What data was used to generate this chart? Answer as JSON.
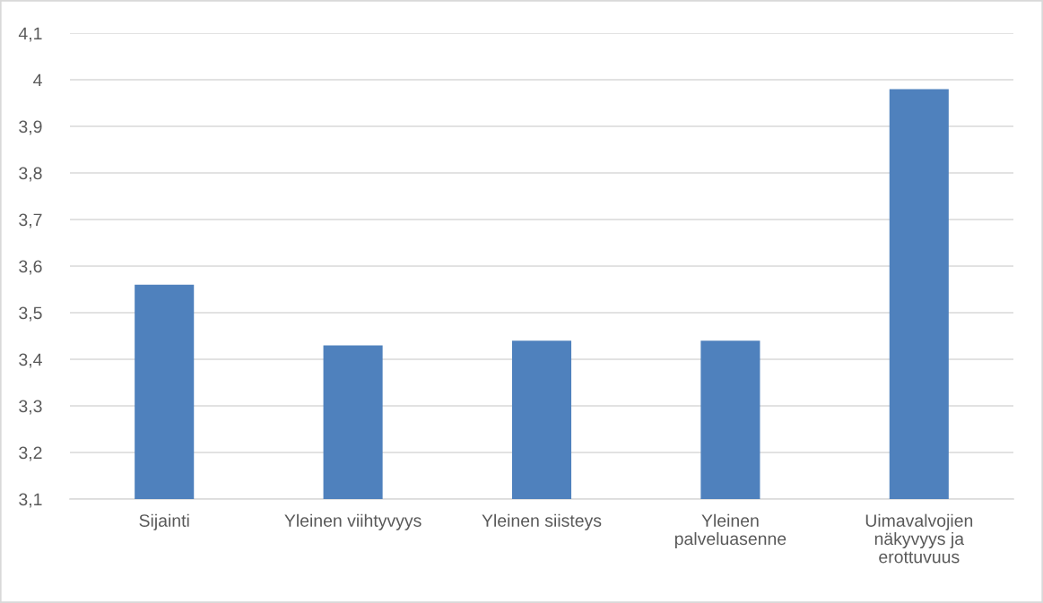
{
  "chart_data": {
    "type": "bar",
    "categories": [
      "Sijainti",
      "Yleinen viihtyvyys",
      "Yleinen siisteys",
      "Yleinen palveluasenne",
      "Uimavalvojien näkyvyys ja erottuvuus"
    ],
    "values": [
      3.56,
      3.43,
      3.44,
      3.44,
      3.98
    ],
    "color": "#4f81bd",
    "ylim": [
      3.1,
      4.1
    ],
    "yticks": [
      {
        "value": 3.1,
        "label": "3,1"
      },
      {
        "value": 3.2,
        "label": "3,2"
      },
      {
        "value": 3.3,
        "label": "3,3"
      },
      {
        "value": 3.4,
        "label": "3,4"
      },
      {
        "value": 3.5,
        "label": "3,5"
      },
      {
        "value": 3.6,
        "label": "3,6"
      },
      {
        "value": 3.7,
        "label": "3,7"
      },
      {
        "value": 3.8,
        "label": "3,8"
      },
      {
        "value": 3.9,
        "label": "3,9"
      },
      4,
      {
        "value": 4.1,
        "label": "4,1"
      }
    ],
    "grid": "y",
    "legend": false
  }
}
